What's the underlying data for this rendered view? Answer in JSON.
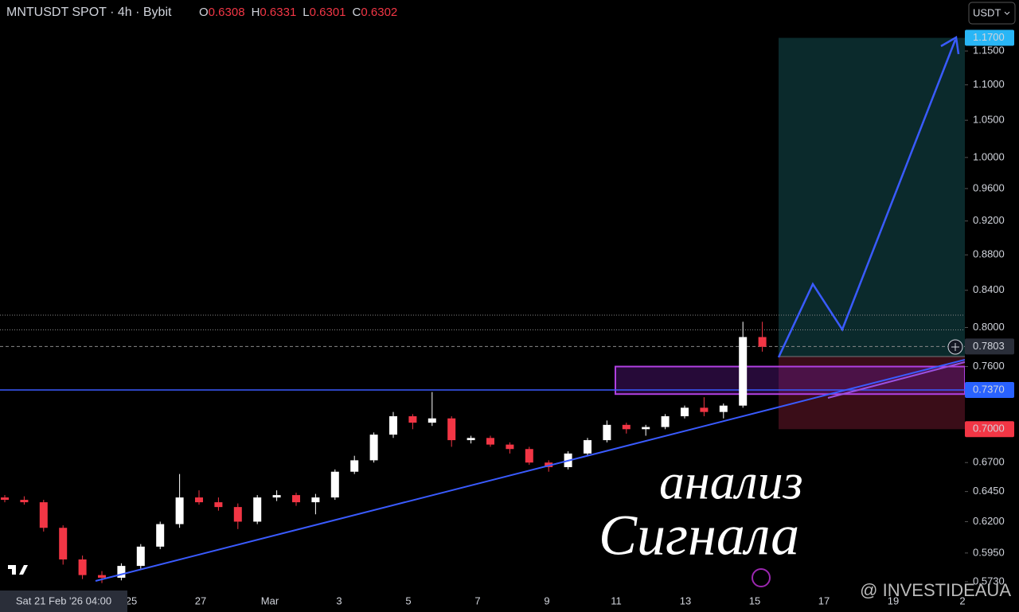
{
  "chart_data": {
    "type": "candlestick",
    "title": "MNTUSDT SPOT · 4h · Bybit",
    "ohlc_header": [
      {
        "key": "O",
        "value": {
          "value": 0.6308,
          "label": "0.6308"
        }
      },
      {
        "key": "H",
        "value": {
          "value": 0.6331,
          "label": "0.6331"
        }
      },
      {
        "key": "L",
        "value": {
          "value": 0.6301,
          "label": "0.6301"
        }
      },
      {
        "key": "C",
        "value": {
          "value": 0.6302,
          "label": "0.6302"
        }
      }
    ],
    "currency": "USDT",
    "log_scale": true,
    "ylim": [
      0.5676,
      1.2296
    ],
    "yticks": [
      {
        "value": 1.15,
        "label": "1.1500"
      },
      {
        "value": 1.1,
        "label": "1.1000"
      },
      {
        "value": 1.05,
        "label": "1.0500"
      },
      {
        "value": 1.0,
        "label": "1.0000"
      },
      {
        "value": 0.96,
        "label": "0.9600"
      },
      {
        "value": 0.92,
        "label": "0.9200"
      },
      {
        "value": 0.88,
        "label": "0.8800"
      },
      {
        "value": 0.84,
        "label": "0.8400"
      },
      {
        "value": 0.8,
        "label": "0.8000"
      },
      {
        "value": 0.76,
        "label": "0.7600"
      },
      {
        "value": 0.67,
        "label": "0.6700"
      },
      {
        "value": 0.645,
        "label": "0.6450"
      },
      {
        "value": 0.62,
        "label": "0.6200"
      },
      {
        "value": 0.595,
        "label": "0.5950"
      },
      {
        "value": 0.573,
        "label": "0.5730"
      }
    ],
    "price_labels": [
      {
        "value": 1.17,
        "label": "1.1700",
        "color": "#29b6f6",
        "text_color": "#000000"
      },
      {
        "value": 0.7803,
        "label": "0.7803",
        "color": "#2a2e39",
        "text_color": "#ffffff"
      },
      {
        "value": 0.737,
        "label": "0.7370",
        "color": "#2962ff",
        "text_color": "#ffffff"
      },
      {
        "value": 0.7,
        "label": "0.7000",
        "color": "#f23645",
        "text_color": "#ffffff"
      }
    ],
    "x_labels": [
      "25",
      "27",
      "Mar",
      "3",
      "5",
      "7",
      "9",
      "11",
      "13",
      "15",
      "17",
      "19",
      "2"
    ],
    "crosshair_label": "Sat 21 Feb '26 04:00",
    "up_color": "#ffffff",
    "down_color": "#f23645",
    "candles": [
      {
        "o": 0.64,
        "h": 0.642,
        "l": 0.636,
        "c": 0.638
      },
      {
        "o": 0.638,
        "h": 0.641,
        "l": 0.634,
        "c": 0.636
      },
      {
        "o": 0.636,
        "h": 0.638,
        "l": 0.612,
        "c": 0.615
      },
      {
        "o": 0.615,
        "h": 0.617,
        "l": 0.586,
        "c": 0.59
      },
      {
        "o": 0.59,
        "h": 0.593,
        "l": 0.575,
        "c": 0.578
      },
      {
        "o": 0.578,
        "h": 0.581,
        "l": 0.572,
        "c": 0.576
      },
      {
        "o": 0.576,
        "h": 0.587,
        "l": 0.574,
        "c": 0.585
      },
      {
        "o": 0.585,
        "h": 0.602,
        "l": 0.583,
        "c": 0.6
      },
      {
        "o": 0.6,
        "h": 0.62,
        "l": 0.598,
        "c": 0.618
      },
      {
        "o": 0.618,
        "h": 0.66,
        "l": 0.615,
        "c": 0.64
      },
      {
        "o": 0.64,
        "h": 0.646,
        "l": 0.634,
        "c": 0.636
      },
      {
        "o": 0.636,
        "h": 0.64,
        "l": 0.629,
        "c": 0.632
      },
      {
        "o": 0.632,
        "h": 0.635,
        "l": 0.614,
        "c": 0.62
      },
      {
        "o": 0.62,
        "h": 0.642,
        "l": 0.618,
        "c": 0.64
      },
      {
        "o": 0.64,
        "h": 0.646,
        "l": 0.637,
        "c": 0.642
      },
      {
        "o": 0.642,
        "h": 0.644,
        "l": 0.633,
        "c": 0.636
      },
      {
        "o": 0.636,
        "h": 0.643,
        "l": 0.626,
        "c": 0.64
      },
      {
        "o": 0.64,
        "h": 0.664,
        "l": 0.638,
        "c": 0.662
      },
      {
        "o": 0.662,
        "h": 0.676,
        "l": 0.66,
        "c": 0.672
      },
      {
        "o": 0.672,
        "h": 0.697,
        "l": 0.67,
        "c": 0.695
      },
      {
        "o": 0.695,
        "h": 0.716,
        "l": 0.692,
        "c": 0.712
      },
      {
        "o": 0.712,
        "h": 0.714,
        "l": 0.7,
        "c": 0.706
      },
      {
        "o": 0.706,
        "h": 0.735,
        "l": 0.703,
        "c": 0.71
      },
      {
        "o": 0.71,
        "h": 0.712,
        "l": 0.684,
        "c": 0.69
      },
      {
        "o": 0.69,
        "h": 0.694,
        "l": 0.687,
        "c": 0.692
      },
      {
        "o": 0.692,
        "h": 0.694,
        "l": 0.684,
        "c": 0.686
      },
      {
        "o": 0.686,
        "h": 0.688,
        "l": 0.678,
        "c": 0.682
      },
      {
        "o": 0.682,
        "h": 0.684,
        "l": 0.668,
        "c": 0.67
      },
      {
        "o": 0.67,
        "h": 0.672,
        "l": 0.662,
        "c": 0.666
      },
      {
        "o": 0.666,
        "h": 0.68,
        "l": 0.664,
        "c": 0.678
      },
      {
        "o": 0.678,
        "h": 0.692,
        "l": 0.676,
        "c": 0.69
      },
      {
        "o": 0.69,
        "h": 0.708,
        "l": 0.688,
        "c": 0.704
      },
      {
        "o": 0.704,
        "h": 0.706,
        "l": 0.696,
        "c": 0.7
      },
      {
        "o": 0.7,
        "h": 0.704,
        "l": 0.694,
        "c": 0.702
      },
      {
        "o": 0.702,
        "h": 0.714,
        "l": 0.7,
        "c": 0.712
      },
      {
        "o": 0.712,
        "h": 0.722,
        "l": 0.71,
        "c": 0.72
      },
      {
        "o": 0.72,
        "h": 0.73,
        "l": 0.712,
        "c": 0.716
      },
      {
        "o": 0.716,
        "h": 0.724,
        "l": 0.71,
        "c": 0.722
      },
      {
        "o": 0.722,
        "h": 0.806,
        "l": 0.72,
        "c": 0.79
      },
      {
        "o": 0.79,
        "h": 0.806,
        "l": 0.775,
        "c": 0.78
      }
    ],
    "position": {
      "target": 1.17,
      "entry": 0.77,
      "stop": 0.7
    },
    "zone": {
      "top": 0.76,
      "bottom": 0.733
    },
    "level": 0.737,
    "dotted_levels": [
      0.813,
      0.7975
    ],
    "current_price": 0.7803,
    "annotation": [
      "анализ",
      "Сигнала"
    ],
    "watermark": "@ INVESTIDEAUA"
  }
}
